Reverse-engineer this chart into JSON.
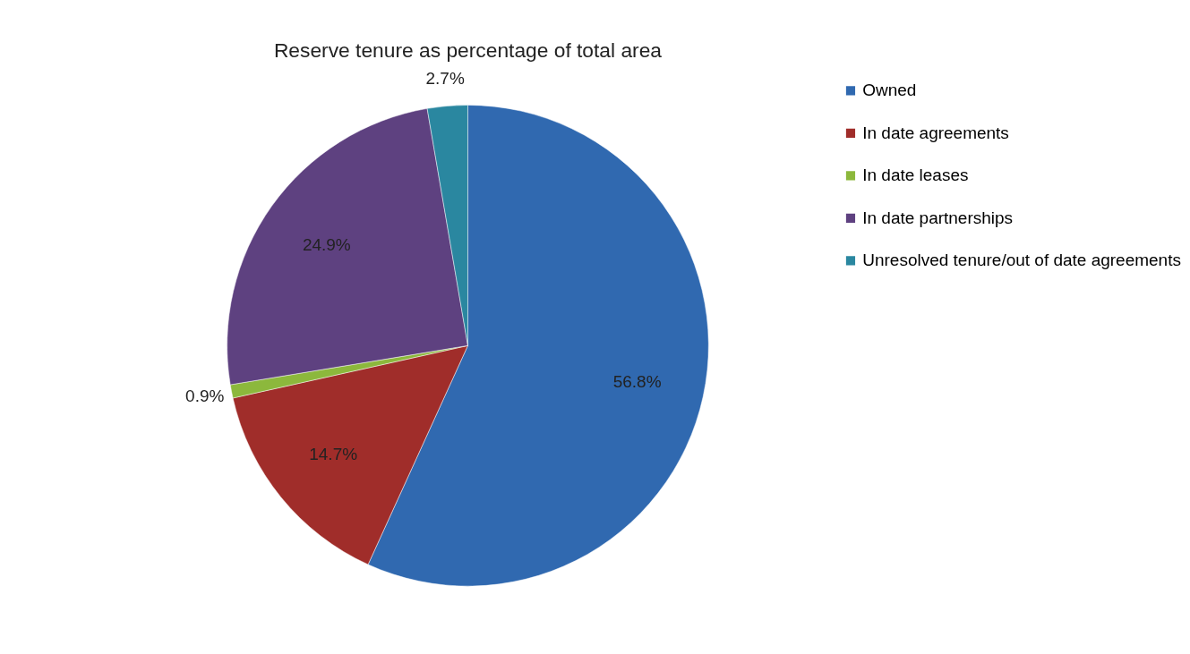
{
  "chart_data": {
    "type": "pie",
    "title": "Reserve tenure as percentage of total area",
    "categories": [
      "Owned",
      "In date agreements",
      "In date leases",
      "In date partnerships",
      "Unresolved tenure/out of date agreements"
    ],
    "values": [
      56.8,
      14.7,
      0.9,
      24.9,
      2.7
    ],
    "colors": [
      "#3069b0",
      "#a02d2a",
      "#8cb83c",
      "#5e4180",
      "#2a87a0"
    ],
    "value_labels": [
      "56.8%",
      "14.7%",
      "0.9%",
      "24.9%",
      "2.7%"
    ],
    "legend": "right"
  }
}
